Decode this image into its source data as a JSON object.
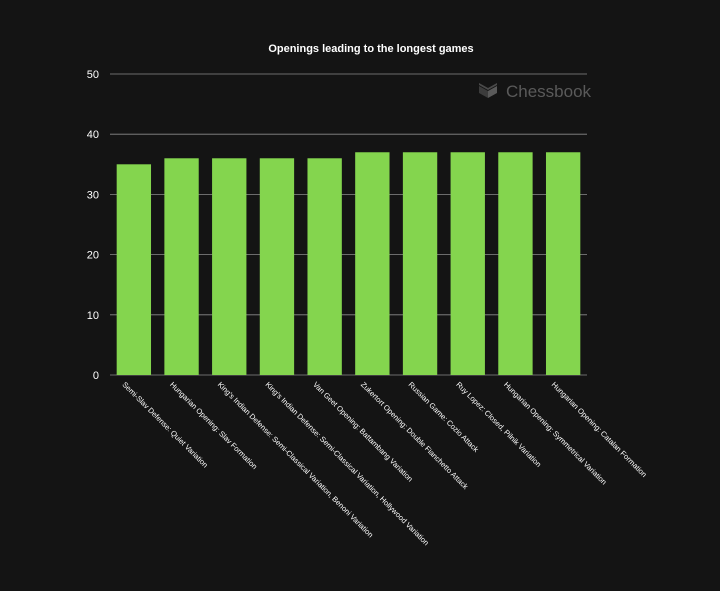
{
  "chart_data": {
    "type": "bar",
    "title": "Openings leading to the longest games",
    "xlabel": "",
    "ylabel": "",
    "ylim": [
      0,
      50
    ],
    "yticks": [
      0,
      10,
      20,
      30,
      40,
      50
    ],
    "grid": true,
    "bar_color": "#84d54e",
    "background": "#141414",
    "categories": [
      "Semi-Slav Defense: Quiet Variation",
      "Hungarian Opening: Slav Formation",
      "King's Indian Defense: Semi-Classical Variation, Benoni Variation",
      "King's Indian Defense: Semi-Classical Variation, Hollywood Variation",
      "Van Geet Opening: Battambang Variation",
      "Zukertort Opening: Double Fianchetto Attack",
      "Russian Game: Cozio Attack",
      "Ruy Lopez: Closed, Pilnik Variation",
      "Hungarian Opening: Symmetrical Variation",
      "Hungarian Opening: Catalan Formation"
    ],
    "values": [
      35,
      36,
      36,
      36,
      36,
      37,
      37,
      37,
      37,
      37
    ]
  },
  "watermark": {
    "text": "Chessbook",
    "icon": "chessbook-logo-icon"
  }
}
